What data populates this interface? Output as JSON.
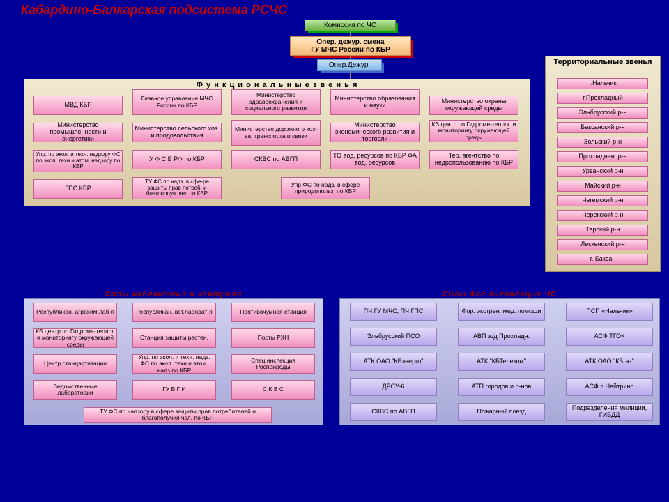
{
  "title": "Кабардино-Балкарская подсистема РСЧС",
  "top": {
    "commission": "Комиссия по ЧС",
    "oper_head": "Опер. дежур. смена\nГУ МЧС России по  КБР",
    "oper": "Опер.Дежур."
  },
  "funcLabel": "Ф у н к ц и о н а л ь н ы е    з в е н ь я",
  "func": {
    "r1": [
      "МВД КБР",
      "Главное управление МЧС России по КБР",
      "Министерство здравоохранения и социального развития",
      "Министерство образования и науки",
      "Министерство охраны окружающей среды"
    ],
    "r2": [
      "Министерство промышленности и энергетики",
      "Министерство сельского хоз. и продовольствия",
      "Министерство дорожного хоз-ва, транспорта и связи",
      "Министерство экономического развития и торговли",
      "КБ центр по Гидроме-теолог. и мониторингу окружающей среды"
    ],
    "r3": [
      "Упр. по экол. и техн. надзору ФС по экол. техн.и атом. надзору по КБР",
      "У Ф С Б   РФ по КБР",
      "СКВС по АВГП",
      "ТО вод. ресурсов по КБР ФА вод. ресурсов",
      "Тер. агентство по недропользованию по КБР"
    ],
    "r4": [
      "ГПС КБР",
      "ТУ ФС по надз. в сфе-ре защиты прав потреб. и благополуч. чел.по КБР",
      "",
      "Упр.ФС по надз. в сфере природопольз. по КБР",
      ""
    ]
  },
  "terrLabel": "Территориальные звенья",
  "terr": [
    "г.Нальчик",
    "г.Прохладный",
    "Эльбрусский р-н",
    "Баксанский р-н",
    "Зольский р-н",
    "Прохладнен. р-н",
    "Урванский р-н",
    "Майский р-н",
    "Чегемский р-н",
    "Черекский р-н",
    "Терский р-н",
    "Лескенский р-н",
    "г. Баксан"
  ],
  "controlLabel": "Силы  наблюдения  и  контроля",
  "control": {
    "c1": [
      "Республикан. агрохим.лаб-я",
      "КБ центр по Гидроме-теолог. и мониторингу окружающей среды",
      "Центр стандартизации",
      "Ведомственные лаборатории"
    ],
    "c2": [
      "Республикан. вет.лаборат-я",
      "Станция защиты растен.",
      "Упр. по экол. и техн. надз. ФС по экол. техн.и атом. надз.по КБР",
      "ГУ В Г И"
    ],
    "c3": [
      "Противочумная станция",
      "Посты  РХН",
      "Спец.инспекция Росприроды",
      "С К В С"
    ],
    "bottom": "ТУ ФС по надзору в сфере защиты прав потребителей и благополучия чел. по КБР"
  },
  "liqLabel": "Силы  для  ликвидации  ЧС",
  "liq": {
    "c1": [
      "ПЧ ГУ МЧС, ПЧ ГПС",
      "Эльбрусский ПСО",
      "АТК ОАО \"КБэнерго\"",
      "ДРСУ-6",
      "СКВС по АВГП"
    ],
    "c2": [
      "Фор. экстрен. мед. помощи",
      "АВП ж/д Прохладн.",
      "АТК \"КБТелеком\"",
      "АТП городов и р-нов",
      "Пожарный поезд"
    ],
    "c3": [
      "ПСП «Нальчик»",
      "АСФ ТГОК",
      "АТК  ОАО \"КБгаз\"",
      "АСФ п.Нейтрино",
      "Подразделения милиции, ГИБДД"
    ]
  }
}
